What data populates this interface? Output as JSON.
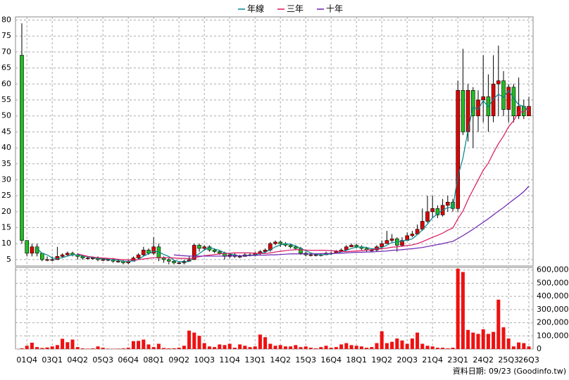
{
  "chart_data": [
    {
      "type": "candlestick",
      "categories": [
        null,
        "01Q4",
        null,
        null,
        null,
        null,
        "03Q1",
        null,
        null,
        null,
        null,
        "04Q2",
        null,
        null,
        null,
        null,
        "05Q3",
        null,
        null,
        null,
        null,
        "06Q4",
        null,
        null,
        null,
        null,
        "08Q1",
        null,
        null,
        null,
        null,
        "09Q2",
        null,
        null,
        null,
        null,
        "10Q3",
        null,
        null,
        null,
        null,
        "11Q4",
        null,
        null,
        null,
        null,
        "13Q1",
        null,
        null,
        null,
        null,
        "14Q2",
        null,
        null,
        null,
        null,
        "15Q3",
        null,
        null,
        null,
        null,
        "16Q4",
        null,
        null,
        null,
        null,
        "18Q1",
        null,
        null,
        null,
        null,
        "19Q2",
        null,
        null,
        null,
        null,
        "20Q3",
        null,
        null,
        null,
        null,
        "21Q4",
        null,
        null,
        null,
        null,
        "23Q1",
        null,
        null,
        null,
        null,
        "24Q2",
        null,
        null,
        null,
        null,
        "25Q3",
        null,
        null,
        null,
        "26Q3"
      ],
      "open": [
        69,
        11,
        7,
        9,
        7,
        5,
        5,
        5,
        6,
        6.5,
        7,
        6.5,
        6,
        5.5,
        5.5,
        5.5,
        5,
        5,
        5,
        4.5,
        4.5,
        4,
        4.5,
        5.5,
        6.5,
        8,
        7,
        9,
        5.5,
        5,
        4.5,
        4,
        4,
        4.5,
        5,
        9.5,
        8.5,
        9,
        8,
        7.5,
        7,
        6,
        6.5,
        6,
        6,
        6.5,
        6.5,
        7,
        7.5,
        8,
        10,
        10.5,
        10,
        9.5,
        9,
        8.5,
        7,
        6.5,
        6.5,
        6.5,
        6.5,
        7,
        7,
        7.5,
        8,
        9,
        9.5,
        9,
        8.5,
        8,
        8,
        9,
        10,
        11,
        11.5,
        9.5,
        11,
        12.5,
        13,
        14.5,
        17,
        20,
        21,
        19,
        22,
        23,
        21,
        58,
        45,
        58,
        50,
        55,
        56,
        50,
        60,
        61,
        52,
        59,
        50,
        53,
        50
      ],
      "high": [
        79,
        11,
        10,
        10,
        7,
        6,
        6,
        9,
        7,
        7.5,
        7.5,
        7,
        6.5,
        6,
        6,
        6,
        5.5,
        5.5,
        5.5,
        5,
        5,
        5,
        6,
        7,
        9,
        8.5,
        12,
        10,
        6,
        5.5,
        5,
        4.5,
        5,
        6,
        10,
        10,
        9.5,
        9.5,
        8.5,
        8,
        7.5,
        7,
        7,
        6.5,
        7,
        7,
        7.5,
        8,
        8.5,
        10.5,
        11,
        11,
        10.5,
        10,
        9.5,
        9,
        7.5,
        7,
        7,
        7,
        7.5,
        7.5,
        8,
        8.5,
        9.5,
        10,
        10,
        9.5,
        9,
        8.5,
        9.5,
        11,
        14,
        13,
        12,
        12,
        13.5,
        14,
        16,
        21,
        25,
        25,
        22,
        24,
        25,
        24,
        61,
        71,
        60,
        59,
        58,
        69,
        63,
        69,
        72,
        64,
        60,
        60,
        62,
        55,
        56
      ],
      "low": [
        10,
        6,
        6,
        6,
        4.5,
        4.5,
        4.5,
        5,
        5.5,
        6,
        6,
        5,
        5,
        5,
        5,
        4.5,
        4.5,
        4.5,
        4,
        4,
        3.5,
        3.5,
        4.5,
        5,
        6,
        6.5,
        6.5,
        4.5,
        4,
        3.5,
        3.5,
        3.5,
        3.5,
        4.5,
        5,
        7.5,
        8,
        7.5,
        7,
        6.5,
        5,
        5.5,
        5.5,
        5.5,
        6,
        6,
        6,
        6.5,
        7,
        7.5,
        9.5,
        9,
        9,
        8.5,
        8,
        6.5,
        6,
        6,
        6,
        6,
        6.5,
        6.5,
        7,
        7.5,
        8,
        9,
        8.5,
        8,
        7.5,
        7.5,
        7.5,
        8.5,
        10,
        10.5,
        7.5,
        9,
        11,
        12,
        13,
        14,
        16.5,
        18,
        18,
        18.5,
        20,
        20,
        20,
        44,
        42,
        40,
        45,
        48,
        45,
        48,
        50,
        50,
        48,
        48,
        49,
        49,
        50
      ],
      "close": [
        11,
        7,
        9,
        7,
        5,
        5,
        5,
        6,
        6.5,
        7,
        6.5,
        6,
        5.5,
        5.5,
        5.5,
        5,
        5,
        5,
        4.5,
        4.5,
        4,
        4.5,
        5.5,
        6.5,
        8,
        7,
        9,
        5.5,
        5,
        4.5,
        4,
        4,
        4.5,
        5,
        9.5,
        8.5,
        9,
        8,
        7.5,
        7,
        6,
        6.5,
        6,
        6,
        6.5,
        6.5,
        7,
        7.5,
        8,
        10,
        10.5,
        10,
        9.5,
        9,
        8.5,
        7,
        6.5,
        6.5,
        6.5,
        6.5,
        7,
        7,
        7.5,
        8,
        9,
        9.5,
        9,
        8.5,
        8,
        8,
        9,
        10,
        11,
        11.5,
        9.5,
        11,
        12.5,
        13,
        14.5,
        17,
        20,
        21,
        19,
        22,
        23,
        21,
        58,
        45,
        58,
        50,
        55,
        56,
        50,
        60,
        61,
        52,
        59,
        50,
        53,
        50,
        53
      ],
      "up_color": "#dd0000",
      "down_color": "#22bb22",
      "series": [
        {
          "name": "年線",
          "color": "#00868b",
          "values": [
            null,
            null,
            null,
            8.5,
            7,
            6.5,
            5.5,
            5.3,
            5.6,
            6.1,
            6.5,
            6.5,
            6.1,
            5.9,
            5.6,
            5.4,
            5.3,
            5.1,
            4.9,
            4.8,
            4.5,
            4.4,
            4.6,
            5.1,
            6.1,
            6.8,
            7.6,
            7.4,
            6.6,
            6,
            4.8,
            4.4,
            4.3,
            4.4,
            5.8,
            6.9,
            8,
            8.8,
            8.3,
            7.9,
            7.1,
            6.8,
            6.4,
            6.1,
            6.3,
            6.3,
            6.5,
            6.9,
            7.3,
            8.1,
            9,
            9.6,
            10,
            9.8,
            9.3,
            8.5,
            7.8,
            7.1,
            6.6,
            6.5,
            6.6,
            6.8,
            7,
            7.4,
            7.9,
            8.5,
            8.9,
            9,
            8.8,
            8.4,
            8.4,
            8.8,
            9.5,
            10.4,
            10.5,
            10.8,
            11.1,
            11.5,
            12.8,
            14.3,
            16.1,
            18.1,
            19.3,
            20.5,
            21.3,
            21.3,
            31,
            36.8,
            45.5,
            52.8,
            52,
            54.8,
            52.8,
            55.3,
            56.8,
            55.8,
            58,
            55.5,
            53.5,
            53,
            51.5
          ]
        },
        {
          "name": "三年",
          "color": "#dc1460",
          "values": [
            null,
            null,
            null,
            null,
            null,
            null,
            null,
            null,
            null,
            null,
            null,
            6.8,
            6.4,
            6,
            5.8,
            5.6,
            5.5,
            5.4,
            5.3,
            5.1,
            5,
            4.9,
            4.9,
            5,
            5.2,
            5.4,
            5.6,
            5.6,
            5.6,
            5.6,
            5.5,
            5.4,
            5.4,
            5.3,
            5.6,
            5.9,
            6.2,
            6.4,
            6.6,
            6.8,
            6.9,
            7,
            7.1,
            7.1,
            7.1,
            7.1,
            7,
            6.9,
            6.9,
            7.1,
            7.4,
            7.6,
            7.8,
            8,
            8.1,
            8.1,
            8,
            7.9,
            7.9,
            7.9,
            7.9,
            7.8,
            7.7,
            7.5,
            7.5,
            7.6,
            7.7,
            7.8,
            8,
            8.1,
            8.3,
            8.4,
            8.6,
            8.9,
            9,
            9.2,
            9.4,
            9.6,
            10,
            10.6,
            11.3,
            12,
            12.6,
            13.3,
            14.2,
            14.9,
            17.8,
            20.2,
            23.8,
            26.9,
            29.9,
            33,
            35.2,
            38.4,
            41.3,
            43.7,
            46.6,
            48.5,
            51.3,
            51.2,
            52.8
          ]
        },
        {
          "name": "十年",
          "color": "#6a1fb0",
          "values": [
            null,
            null,
            null,
            null,
            null,
            null,
            null,
            null,
            null,
            null,
            null,
            null,
            null,
            null,
            null,
            null,
            null,
            null,
            null,
            null,
            null,
            null,
            null,
            null,
            null,
            null,
            null,
            null,
            null,
            null,
            6.5,
            6.3,
            6.2,
            6.1,
            6.1,
            6.1,
            6.1,
            6.1,
            6.1,
            6.1,
            6.1,
            6.2,
            6.2,
            6.2,
            6.2,
            6.3,
            6.3,
            6.4,
            6.4,
            6.5,
            6.5,
            6.6,
            6.7,
            6.8,
            6.8,
            6.8,
            6.8,
            6.8,
            6.8,
            6.9,
            6.9,
            6.9,
            7,
            7,
            7.1,
            7.2,
            7.3,
            7.3,
            7.4,
            7.4,
            7.5,
            7.6,
            7.7,
            7.9,
            8,
            8.1,
            8.3,
            8.4,
            8.6,
            8.8,
            9.1,
            9.4,
            9.7,
            10,
            10.4,
            10.7,
            11.6,
            12.5,
            13.5,
            14.5,
            15.6,
            16.7,
            17.8,
            19,
            20.2,
            21.3,
            22.6,
            23.8,
            25,
            26.3,
            28
          ]
        }
      ],
      "ylim": [
        3,
        81
      ],
      "yticks": [
        5,
        10,
        15,
        20,
        25,
        30,
        35,
        40,
        45,
        50,
        55,
        60,
        65,
        70,
        75,
        80
      ],
      "grid": true,
      "legend": "top"
    },
    {
      "type": "bar",
      "values": [
        5000,
        25000,
        48000,
        15000,
        8000,
        12000,
        20000,
        30000,
        78000,
        52000,
        72000,
        15000,
        5000,
        3000,
        5000,
        20000,
        10000,
        3000,
        2000,
        3000,
        5000,
        10000,
        60000,
        62000,
        72000,
        35000,
        15000,
        40000,
        8000,
        5000,
        6000,
        10000,
        25000,
        140000,
        125000,
        100000,
        45000,
        20000,
        15000,
        35000,
        30000,
        40000,
        10000,
        35000,
        25000,
        15000,
        20000,
        110000,
        90000,
        40000,
        25000,
        30000,
        20000,
        20000,
        30000,
        15000,
        20000,
        10000,
        5000,
        15000,
        25000,
        10000,
        15000,
        35000,
        45000,
        30000,
        25000,
        20000,
        10000,
        15000,
        45000,
        135000,
        45000,
        55000,
        80000,
        65000,
        40000,
        80000,
        125000,
        40000,
        25000,
        20000,
        10000,
        10000,
        5000,
        10000,
        610000,
        585000,
        145000,
        125000,
        115000,
        150000,
        115000,
        130000,
        375000,
        165000,
        80000,
        20000,
        50000,
        45000,
        20000
      ],
      "color": "#ee1111",
      "ylim": [
        0,
        620000
      ],
      "yticks": [
        0,
        {
          "value": 100000,
          "label": "100,000"
        },
        {
          "value": 200000,
          "label": "200,000"
        },
        {
          "value": 300000,
          "label": "300,000"
        },
        {
          "value": 400000,
          "label": "400,000"
        },
        {
          "value": 500000,
          "label": "500,000"
        },
        {
          "value": 600000,
          "label": "600,000"
        }
      ],
      "grid": true,
      "footnote": "資料日期: 09/23  (Goodinfo.tw)"
    }
  ]
}
